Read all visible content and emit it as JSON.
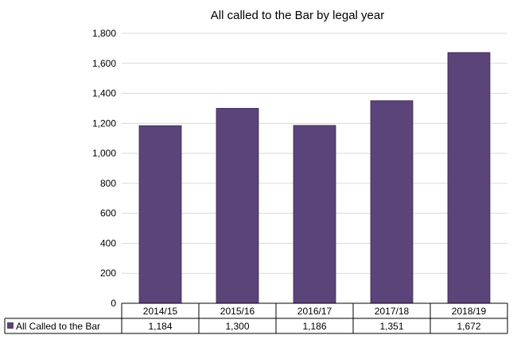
{
  "chart_data": {
    "type": "bar",
    "title": "All called to the Bar by legal year",
    "xlabel": "",
    "ylabel": "",
    "ylim": [
      0,
      1800
    ],
    "y_ticks": [
      0,
      200,
      400,
      600,
      800,
      1000,
      1200,
      1400,
      1600,
      1800
    ],
    "y_tick_labels": [
      "0",
      "200",
      "400",
      "600",
      "800",
      "1,000",
      "1,200",
      "1,400",
      "1,600",
      "1,800"
    ],
    "categories": [
      "2014/15",
      "2015/16",
      "2016/17",
      "2017/18",
      "2018/19"
    ],
    "series": [
      {
        "name": "All Called to the Bar",
        "values": [
          1184,
          1300,
          1186,
          1351,
          1672
        ],
        "value_labels": [
          "1,184",
          "1,300",
          "1,186",
          "1,351",
          "1,672"
        ],
        "color": "#5b4479"
      }
    ],
    "grid": true,
    "legend": "data-table"
  }
}
